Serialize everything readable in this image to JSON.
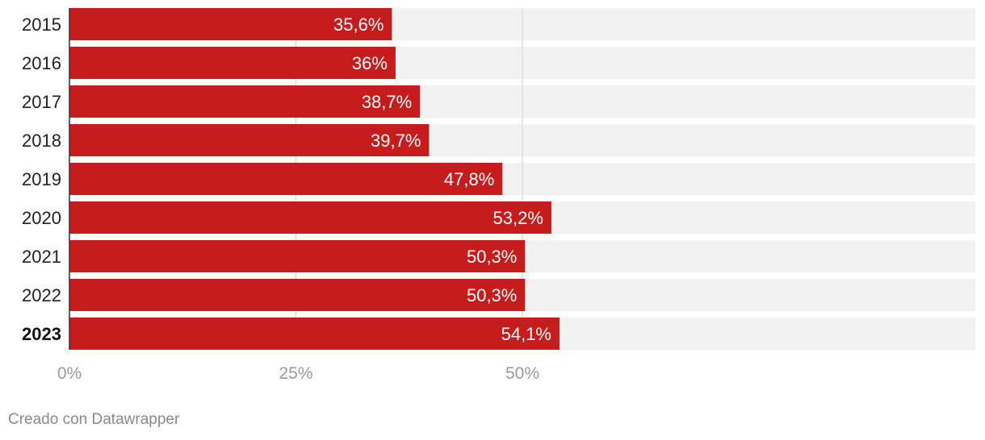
{
  "chart_data": {
    "type": "bar",
    "orientation": "horizontal",
    "categories": [
      "2015",
      "2016",
      "2017",
      "2018",
      "2019",
      "2020",
      "2021",
      "2022",
      "2023"
    ],
    "values": [
      35.6,
      36,
      38.7,
      39.7,
      47.8,
      53.2,
      50.3,
      50.3,
      54.1
    ],
    "value_labels": [
      "35,6%",
      "36%",
      "38,7%",
      "39,7%",
      "47,8%",
      "53,2%",
      "50,3%",
      "50,3%",
      "54,1%"
    ],
    "highlight_category": "2023",
    "xlim": [
      0,
      100
    ],
    "x_ticks": [
      0,
      25,
      50
    ],
    "x_tick_labels": [
      "0%",
      "25%",
      "50%"
    ],
    "grid": true,
    "legend": "none",
    "title": "",
    "xlabel": "",
    "ylabel": ""
  },
  "colors": {
    "bar": "#c71c1c",
    "track": "#f2f2f2",
    "grid": "#dddddd",
    "axis": "#333333"
  },
  "footer": {
    "credit": "Creado con Datawrapper"
  }
}
